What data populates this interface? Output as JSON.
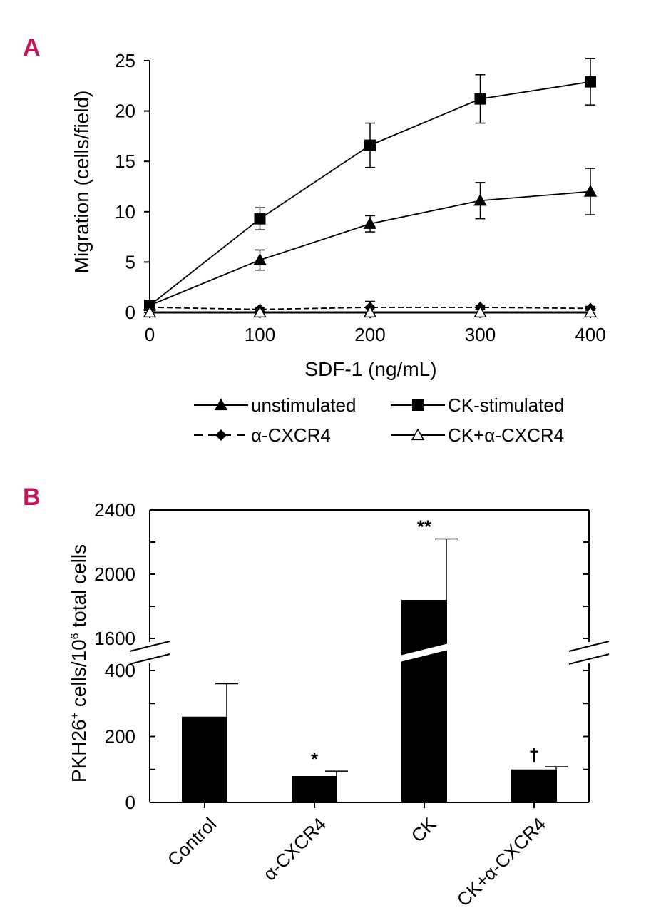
{
  "panels": {
    "a_label": "A",
    "b_label": "B"
  },
  "chart_data": [
    {
      "type": "line",
      "x": [
        0,
        100,
        200,
        300,
        400
      ],
      "xlabel": "SDF-1 (ng/mL)",
      "ylabel": "Migration (cells/field)",
      "xlim": [
        0,
        400
      ],
      "ylim": [
        0,
        25
      ],
      "xticks": [
        "0",
        "100",
        "200",
        "300",
        "400"
      ],
      "yticks": [
        "0",
        "5",
        "10",
        "15",
        "20",
        "25"
      ],
      "series": [
        {
          "name": "unstimulated",
          "marker": "triangle-filled",
          "values": [
            0.7,
            5.2,
            8.8,
            11.1,
            12.0
          ],
          "errors": [
            0.2,
            1.0,
            0.8,
            1.8,
            2.3
          ]
        },
        {
          "name": "CK-stimulated",
          "marker": "square-filled",
          "values": [
            0.7,
            9.3,
            16.6,
            21.2,
            22.9
          ],
          "errors": [
            0.2,
            1.1,
            2.2,
            2.4,
            2.3
          ]
        },
        {
          "name": "α-CXCR4",
          "marker": "diamond-filled",
          "values": [
            0.5,
            0.3,
            0.5,
            0.5,
            0.4
          ],
          "errors": [
            0.1,
            0.2,
            0.6,
            0.2,
            0.2
          ]
        },
        {
          "name": "CK+α-CXCR4",
          "marker": "triangle-open",
          "values": [
            0.0,
            0.0,
            0.0,
            0.0,
            0.0
          ],
          "errors": [
            0.0,
            0.0,
            0.0,
            0.0,
            0.0
          ]
        }
      ],
      "legend": [
        {
          "label": "unstimulated",
          "marker": "triangle-filled",
          "dash": false
        },
        {
          "label": "CK-stimulated",
          "marker": "square-filled",
          "dash": false
        },
        {
          "label": "α-CXCR4",
          "marker": "diamond-filled",
          "dash": true
        },
        {
          "label": "CK+α-CXCR4",
          "marker": "triangle-open",
          "dash": false
        }
      ],
      "legend_position": "below"
    },
    {
      "type": "bar",
      "categories": [
        "Control",
        "α-CXCR4",
        "CK",
        "CK+α-CXCR4"
      ],
      "values": [
        260,
        80,
        1840,
        100
      ],
      "errors": [
        100,
        15,
        380,
        8
      ],
      "significance": [
        "",
        "*",
        "**",
        "†"
      ],
      "ylabel": "PKH26⁺ cells/10⁶ total cells",
      "ylabel_main": "PKH26",
      "ylabel_sup1": "+",
      "ylabel_mid": " cells/10",
      "ylabel_sup2": "6",
      "ylabel_end": " total cells",
      "y_lower_range": [
        0,
        400
      ],
      "y_upper_range": [
        1600,
        2400
      ],
      "yticks_lower": [
        "0",
        "200",
        "400"
      ],
      "yticks_upper": [
        "1600",
        "2000",
        "2400"
      ],
      "axis_break": true
    }
  ]
}
